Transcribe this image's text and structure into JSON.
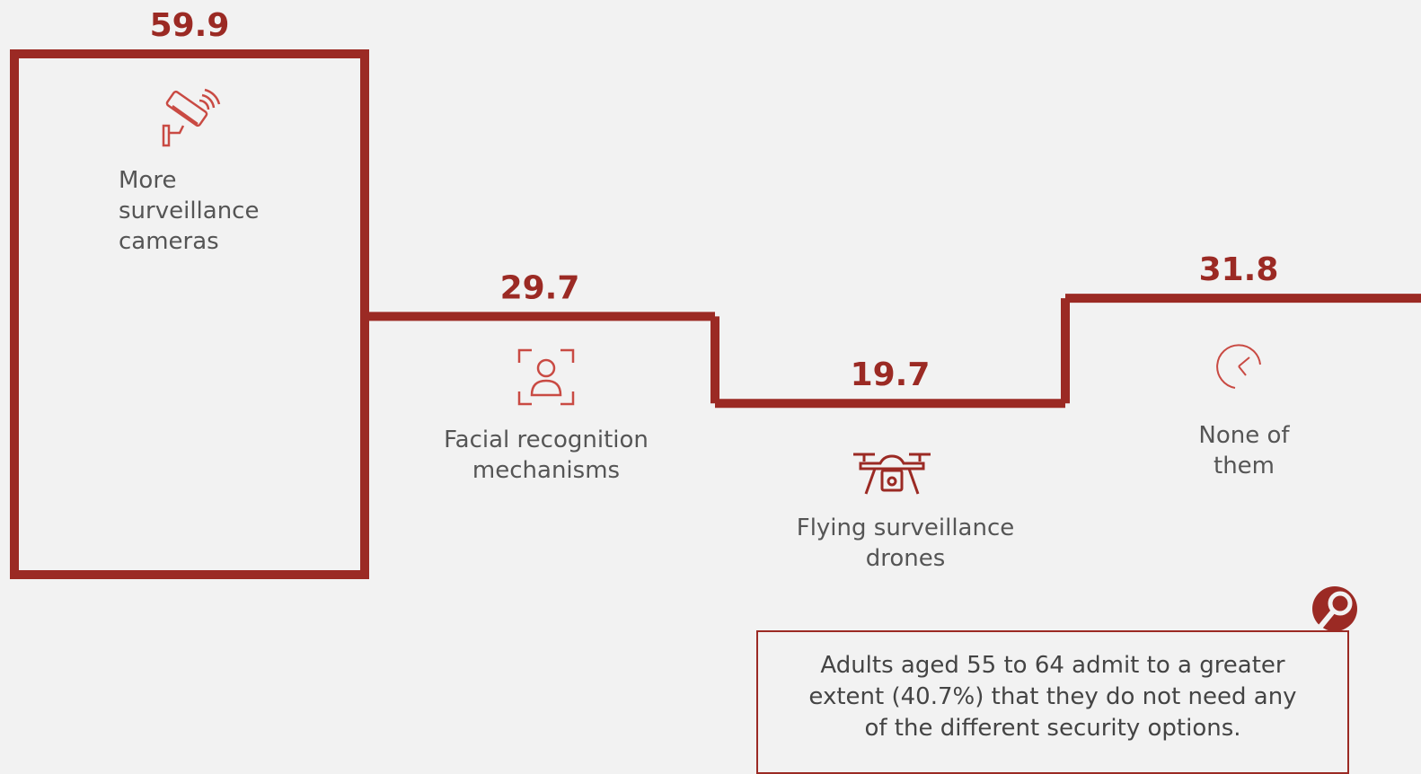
{
  "chart_data": {
    "type": "bar",
    "categories": [
      "More\nsurveillance\ncameras",
      "Facial recognition\nmechanisms",
      "Flying surveillance\ndrones",
      "None of\nthem"
    ],
    "values": [
      59.9,
      29.7,
      19.7,
      31.8
    ],
    "value_labels": [
      "59.9",
      "29.7",
      "19.7",
      "31.8"
    ],
    "title": "",
    "xlabel": "",
    "ylabel": "",
    "ylim": [
      0,
      59.9
    ],
    "grid": false,
    "legend": "none"
  },
  "icons": [
    "security-camera-icon",
    "face-recognition-icon",
    "drone-icon",
    "clock-icon"
  ],
  "note": {
    "text": "Adults aged 55 to 64 admit to a greater extent (40.7%) that they do not need any of the different security options.",
    "badge_icon": "magnifier-icon"
  },
  "colors": {
    "accent": "#9b2a24",
    "background": "#f2f2f2",
    "label": "#555555"
  }
}
